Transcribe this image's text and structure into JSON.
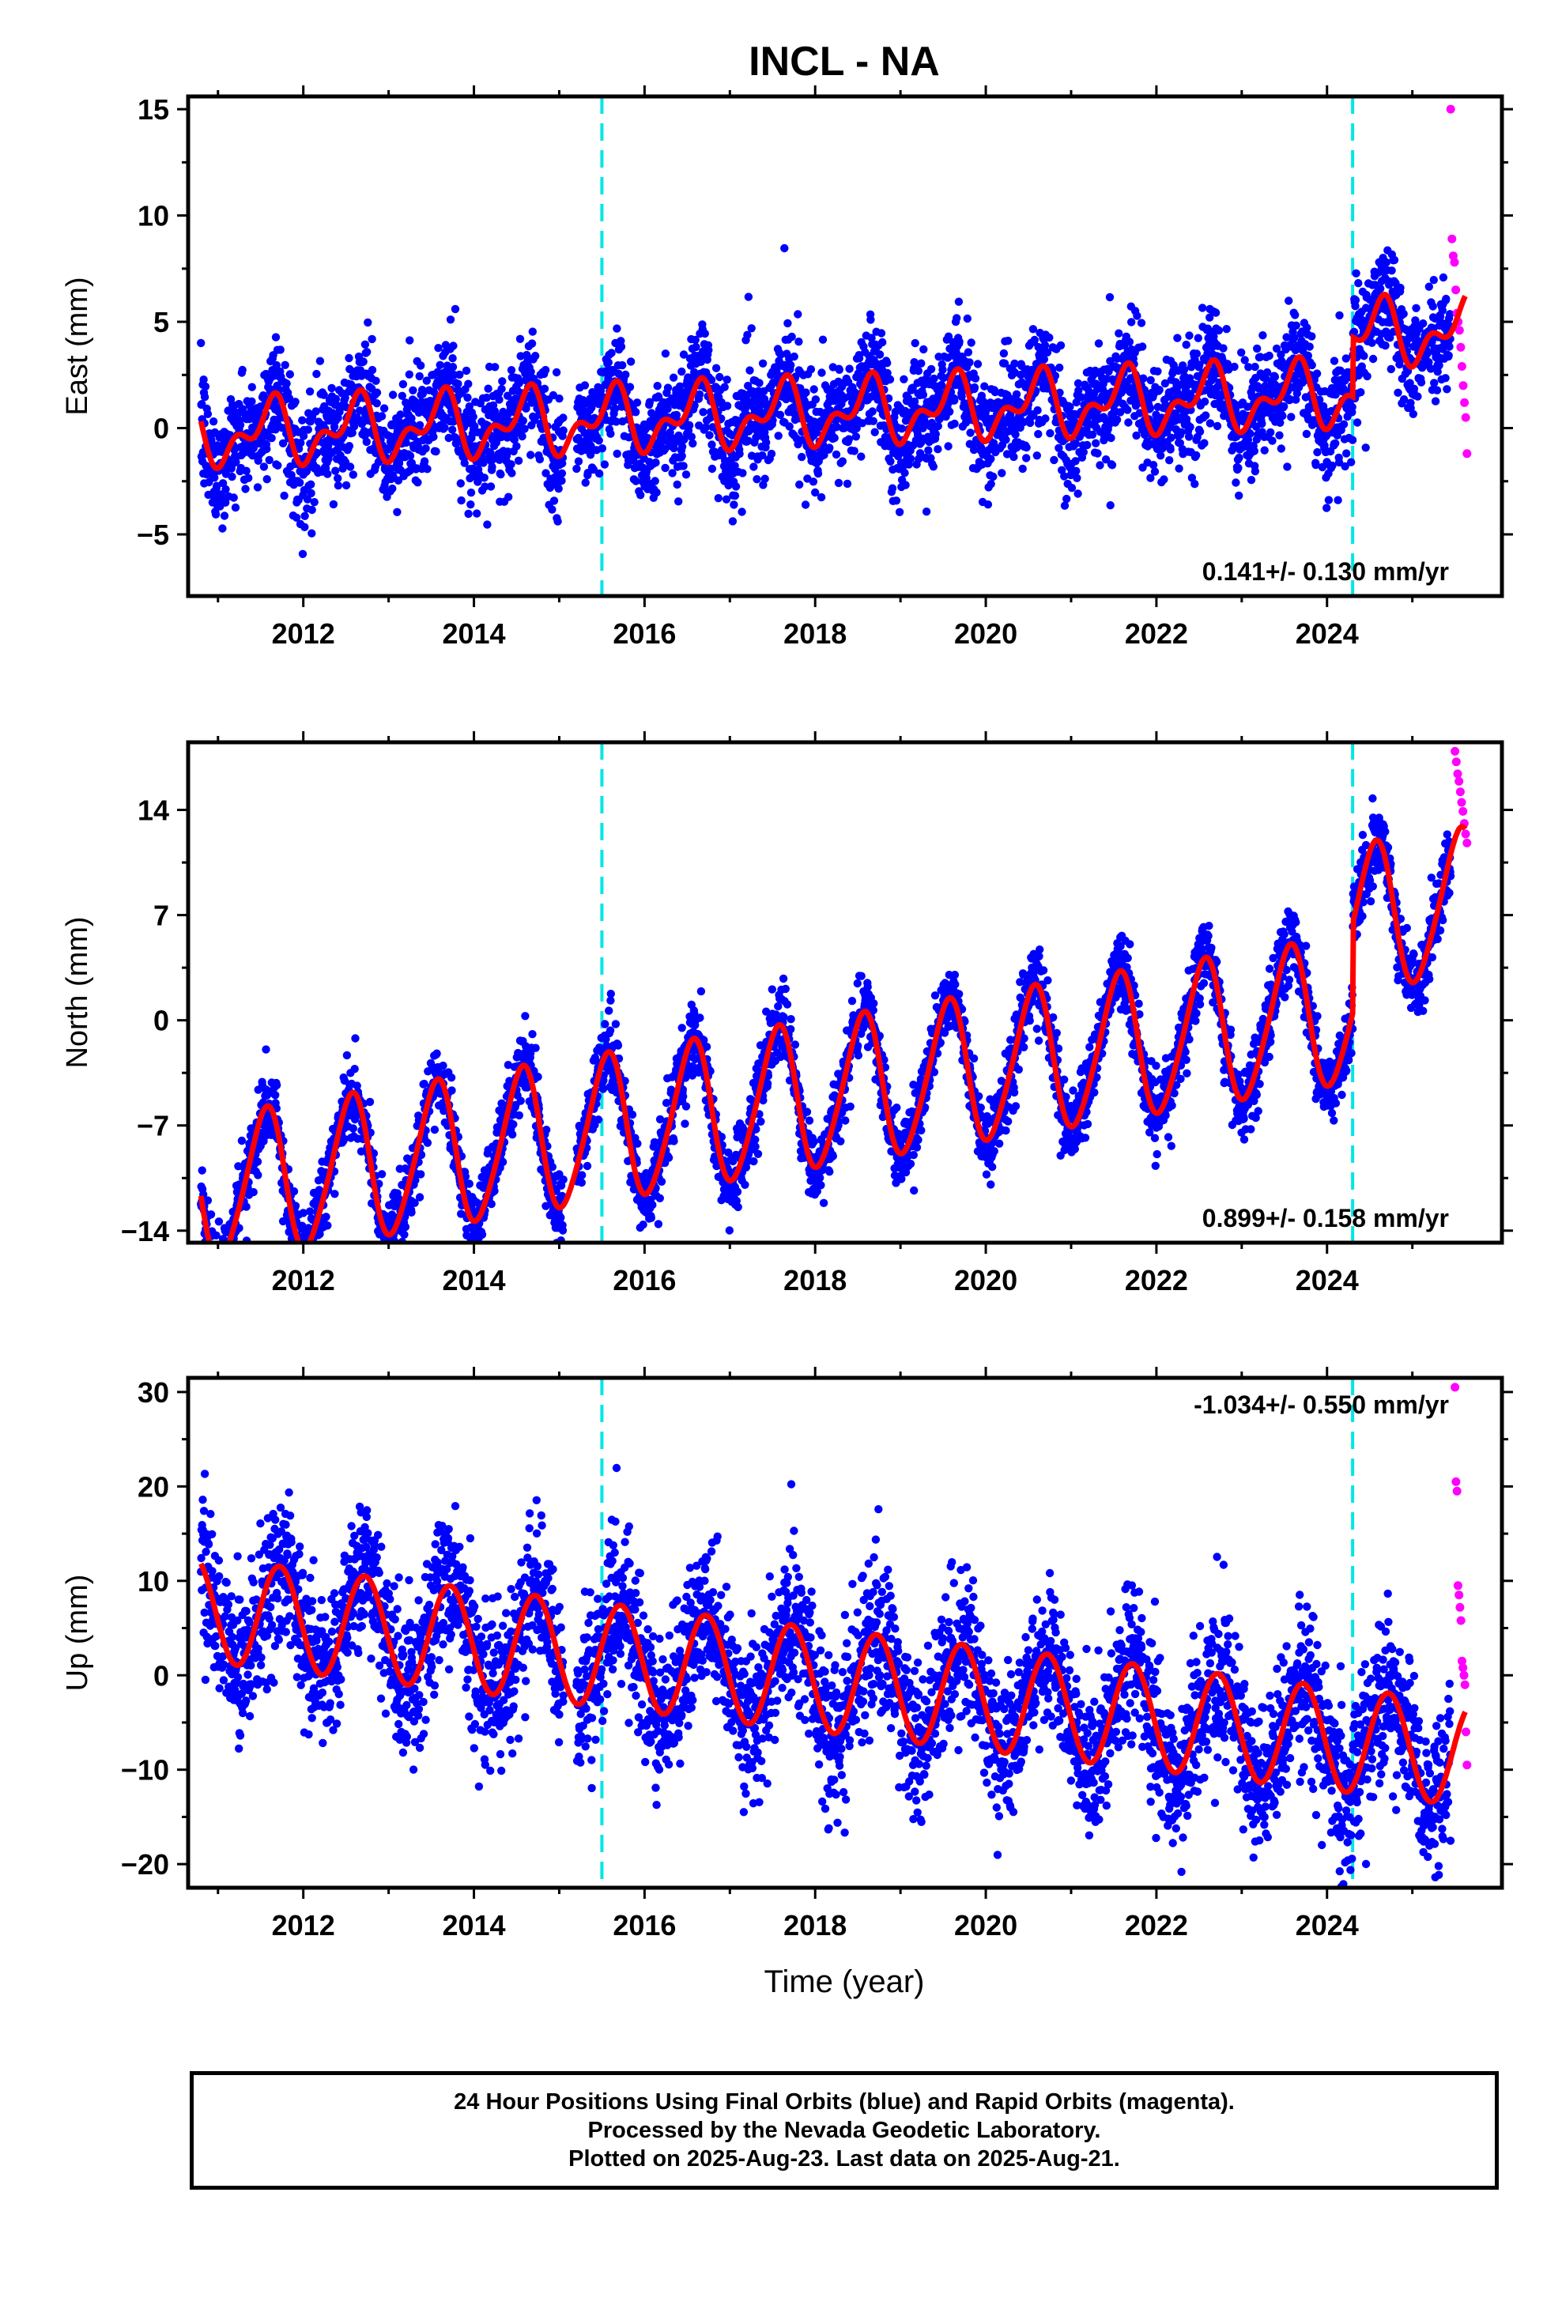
{
  "title": "INCL - NA",
  "x_axis_label": "Time (year)",
  "footer": {
    "line1": "24 Hour Positions Using Final Orbits (blue) and Rapid Orbits (magenta).",
    "line2": "Processed by the Nevada Geodetic Laboratory.",
    "line3": "Plotted on 2025-Aug-23. Last data on 2025-Aug-21."
  },
  "colors": {
    "final": "#0000ff",
    "rapid": "#ff00ff",
    "model": "#ff0000",
    "events": "#00e5e5"
  },
  "chart_data": [
    {
      "type": "scatter",
      "ylabel": "East (mm)",
      "rate_label": "0.141+/- 0.130 mm/yr",
      "xlim": [
        2010.65,
        2026.05
      ],
      "ylim": [
        -7.9,
        15.6
      ],
      "x_ticks": [
        2012,
        2014,
        2016,
        2018,
        2020,
        2022,
        2024
      ],
      "y_ticks": [
        -5,
        0,
        5,
        10,
        15
      ],
      "grid": false,
      "event_lines": [
        2015.5,
        2024.3
      ],
      "model": {
        "base": -0.3,
        "trend": 0.141,
        "annual_amp": 1.2,
        "annual_phase": 2011.6,
        "semi_amp": 0.8,
        "scatter": 1.3,
        "offset_2024_3": 2.8
      },
      "rapid_points": {
        "x_range": [
          2025.45,
          2025.64
        ],
        "y_values": [
          15.0,
          8.9,
          8.1,
          7.8,
          6.5,
          5.4,
          5.0,
          4.6,
          3.8,
          2.9,
          2.0,
          1.2,
          0.5,
          -1.2
        ]
      }
    },
    {
      "type": "scatter",
      "ylabel": "North (mm)",
      "rate_label": "0.899+/- 0.158 mm/yr",
      "xlim": [
        2010.65,
        2026.05
      ],
      "ylim": [
        -14.8,
        18.5
      ],
      "x_ticks": [
        2012,
        2014,
        2016,
        2018,
        2020,
        2022,
        2024
      ],
      "y_ticks": [
        -14,
        -7,
        0,
        7,
        14
      ],
      "grid": false,
      "event_lines": [
        2015.5,
        2024.3
      ],
      "model": {
        "base": -11.5,
        "trend": 0.899,
        "annual_amp": 4.8,
        "annual_phase": 2011.55,
        "semi_amp": 0.6,
        "scatter": 1.2,
        "offset_2024_3": 6.0
      },
      "rapid_points": {
        "x_range": [
          2025.5,
          2025.64
        ],
        "y_values": [
          17.9,
          17.2,
          16.4,
          15.9,
          15.2,
          14.5,
          13.9,
          13.1,
          12.4,
          11.8
        ]
      }
    },
    {
      "type": "scatter",
      "ylabel": "Up (mm)",
      "rate_label": "-1.034+/- 0.550 mm/yr",
      "xlim": [
        2010.65,
        2026.05
      ],
      "ylim": [
        -22.5,
        31.5
      ],
      "x_ticks": [
        2012,
        2014,
        2016,
        2018,
        2020,
        2022,
        2024
      ],
      "y_ticks": [
        -20,
        -10,
        0,
        10,
        20,
        30
      ],
      "grid": false,
      "event_lines": [
        2015.5,
        2024.3
      ],
      "model": {
        "base": 7.0,
        "trend": -1.034,
        "annual_amp": 5.5,
        "annual_phase": 2011.72,
        "semi_amp": 0.0,
        "scatter": 4.0,
        "offset_2024_3": 0.0
      },
      "rapid_points": {
        "x_range": [
          2025.5,
          2025.64
        ],
        "y_values": [
          30.5,
          20.5,
          19.5,
          9.5,
          8.5,
          7.2,
          5.8,
          1.5,
          0.8,
          0.0,
          -1.0,
          -6.0,
          -9.5
        ]
      }
    }
  ]
}
